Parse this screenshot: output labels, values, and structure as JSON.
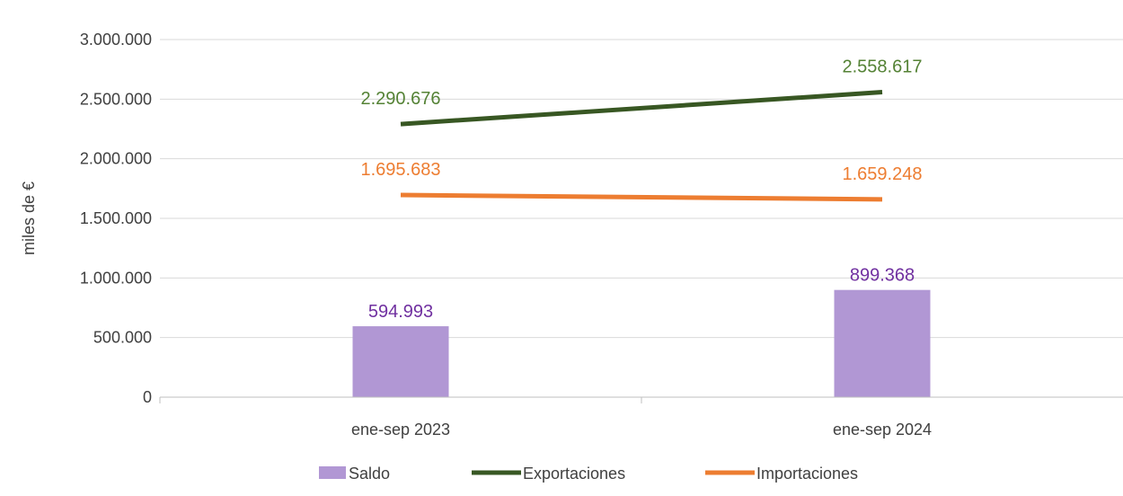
{
  "chart_data": {
    "type": "bar",
    "categories": [
      "ene-sep 2023",
      "ene-sep 2024"
    ],
    "ylabel": "miles de €",
    "ylim": [
      0,
      3000000
    ],
    "yticks": [
      0,
      500000,
      1000000,
      1500000,
      2000000,
      2500000,
      3000000
    ],
    "ytick_labels": [
      "0",
      "500.000",
      "1.000.000",
      "1.500.000",
      "2.000.000",
      "2.500.000",
      "3.000.000"
    ],
    "grid": true,
    "legend_position": "bottom",
    "series": [
      {
        "name": "Saldo",
        "type": "bar",
        "color": "#b197d4",
        "label_color": "#7030a0",
        "values": [
          594993,
          899368
        ],
        "labels": [
          "594.993",
          "899.368"
        ]
      },
      {
        "name": "Exportaciones",
        "type": "line",
        "color": "#385723",
        "label_color": "#548235",
        "values": [
          2290676,
          2558617
        ],
        "labels": [
          "2.290.676",
          "2.558.617"
        ]
      },
      {
        "name": "Importaciones",
        "type": "line",
        "color": "#ed7d31",
        "label_color": "#ed7d31",
        "values": [
          1695683,
          1659248
        ],
        "labels": [
          "1.695.683",
          "1.659.248"
        ]
      }
    ]
  }
}
